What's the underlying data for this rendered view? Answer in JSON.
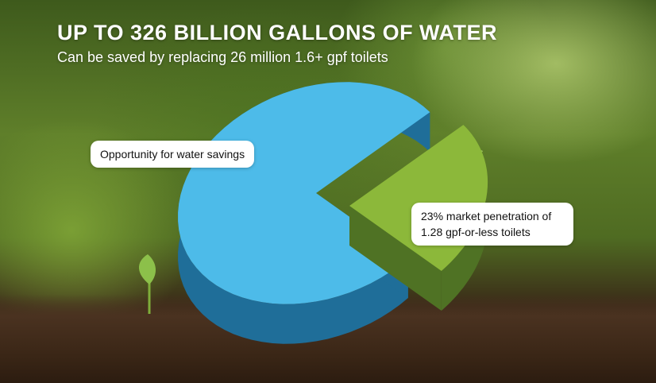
{
  "heading": {
    "title": "UP TO 326 BILLION GALLONS OF WATER",
    "subtitle": "Can be saved by replacing 26 million 1.6+ gpf toilets"
  },
  "chart_data": {
    "type": "pie",
    "style": "3d-exploded",
    "slices": [
      {
        "label": "Opportunity for water savings",
        "value": 77,
        "color": "#4dbbe9",
        "side_color": "#1f6e99"
      },
      {
        "label": "23% market penetration of 1.28 gpf-or-less toilets",
        "value": 23,
        "color": "#8cb83a",
        "side_color": "#4f7224",
        "exploded": true
      }
    ]
  }
}
